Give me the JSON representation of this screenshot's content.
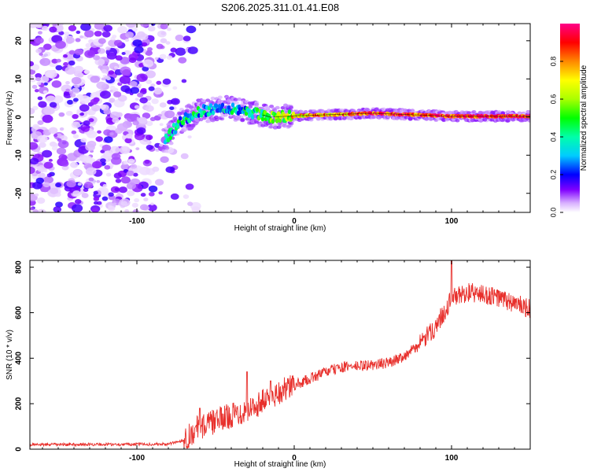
{
  "page": {
    "title": "S206.2025.311.01.41.E08"
  },
  "chart_data": [
    {
      "type": "heatmap",
      "xlabel": "Height of straight line (km)",
      "ylabel": "Frequency (Hz)",
      "xlim": [
        -168,
        150
      ],
      "ylim": [
        -25,
        24.5
      ],
      "xticks": [
        -100,
        0,
        100
      ],
      "xtick_labels": [
        "-100",
        "0",
        "100"
      ],
      "yticks": [
        -20,
        -10,
        0,
        10,
        20
      ],
      "ytick_labels": [
        "-20",
        "-10",
        "0",
        "10",
        "20"
      ],
      "colorbar": {
        "label": "Normalized spectral amplitude",
        "range": [
          0,
          1
        ],
        "ticks": [
          0.0,
          0.2,
          0.4,
          0.6,
          0.8
        ],
        "tick_labels": [
          "0.0",
          "0.2",
          "0.4",
          "0.6",
          "0.8"
        ]
      },
      "description_points": {
        "noise_region_x": [
          -168,
          -62
        ],
        "ridge": [
          {
            "x": -82,
            "f": -6,
            "a": 0.3
          },
          {
            "x": -72,
            "f": -1,
            "a": 0.35
          },
          {
            "x": -60,
            "f": 1.5,
            "a": 0.35
          },
          {
            "x": -45,
            "f": 2.5,
            "a": 0.3
          },
          {
            "x": -30,
            "f": 1.5,
            "a": 0.35
          },
          {
            "x": -15,
            "f": 0,
            "a": 0.45
          },
          {
            "x": 0,
            "f": 0.3,
            "a": 0.7
          },
          {
            "x": 50,
            "f": 1,
            "a": 0.85
          },
          {
            "x": 100,
            "f": 0.2,
            "a": 0.9
          },
          {
            "x": 150,
            "f": 0.2,
            "a": 0.9
          }
        ]
      }
    },
    {
      "type": "line",
      "xlabel": "Height of straight line (km)",
      "ylabel": "SNR (10 * v/v)",
      "xlim": [
        -168,
        150
      ],
      "ylim": [
        0,
        830
      ],
      "xticks": [
        -100,
        0,
        100
      ],
      "xtick_labels": [
        "-100",
        "0",
        "100"
      ],
      "yticks": [
        0,
        200,
        400,
        600,
        800
      ],
      "ytick_labels": [
        "0",
        "200",
        "400",
        "600",
        "800"
      ],
      "series": [
        {
          "name": "SNR",
          "color": "#e8302c",
          "trend": [
            [
              -168,
              20
            ],
            [
              -80,
              22
            ],
            [
              -70,
              40
            ],
            [
              -62,
              90
            ],
            [
              -55,
              110
            ],
            [
              -40,
              150
            ],
            [
              -30,
              170
            ],
            [
              -20,
              210
            ],
            [
              -10,
              250
            ],
            [
              0,
              280
            ],
            [
              10,
              310
            ],
            [
              20,
              340
            ],
            [
              30,
              360
            ],
            [
              40,
              365
            ],
            [
              50,
              370
            ],
            [
              60,
              380
            ],
            [
              70,
              410
            ],
            [
              80,
              460
            ],
            [
              90,
              540
            ],
            [
              100,
              660
            ],
            [
              110,
              690
            ],
            [
              120,
              680
            ],
            [
              130,
              665
            ],
            [
              140,
              640
            ],
            [
              150,
              615
            ]
          ],
          "peaks": [
            [
              -60,
              180
            ],
            [
              -30,
              340
            ],
            [
              -15,
              300
            ],
            [
              100,
              830
            ]
          ]
        }
      ]
    }
  ]
}
